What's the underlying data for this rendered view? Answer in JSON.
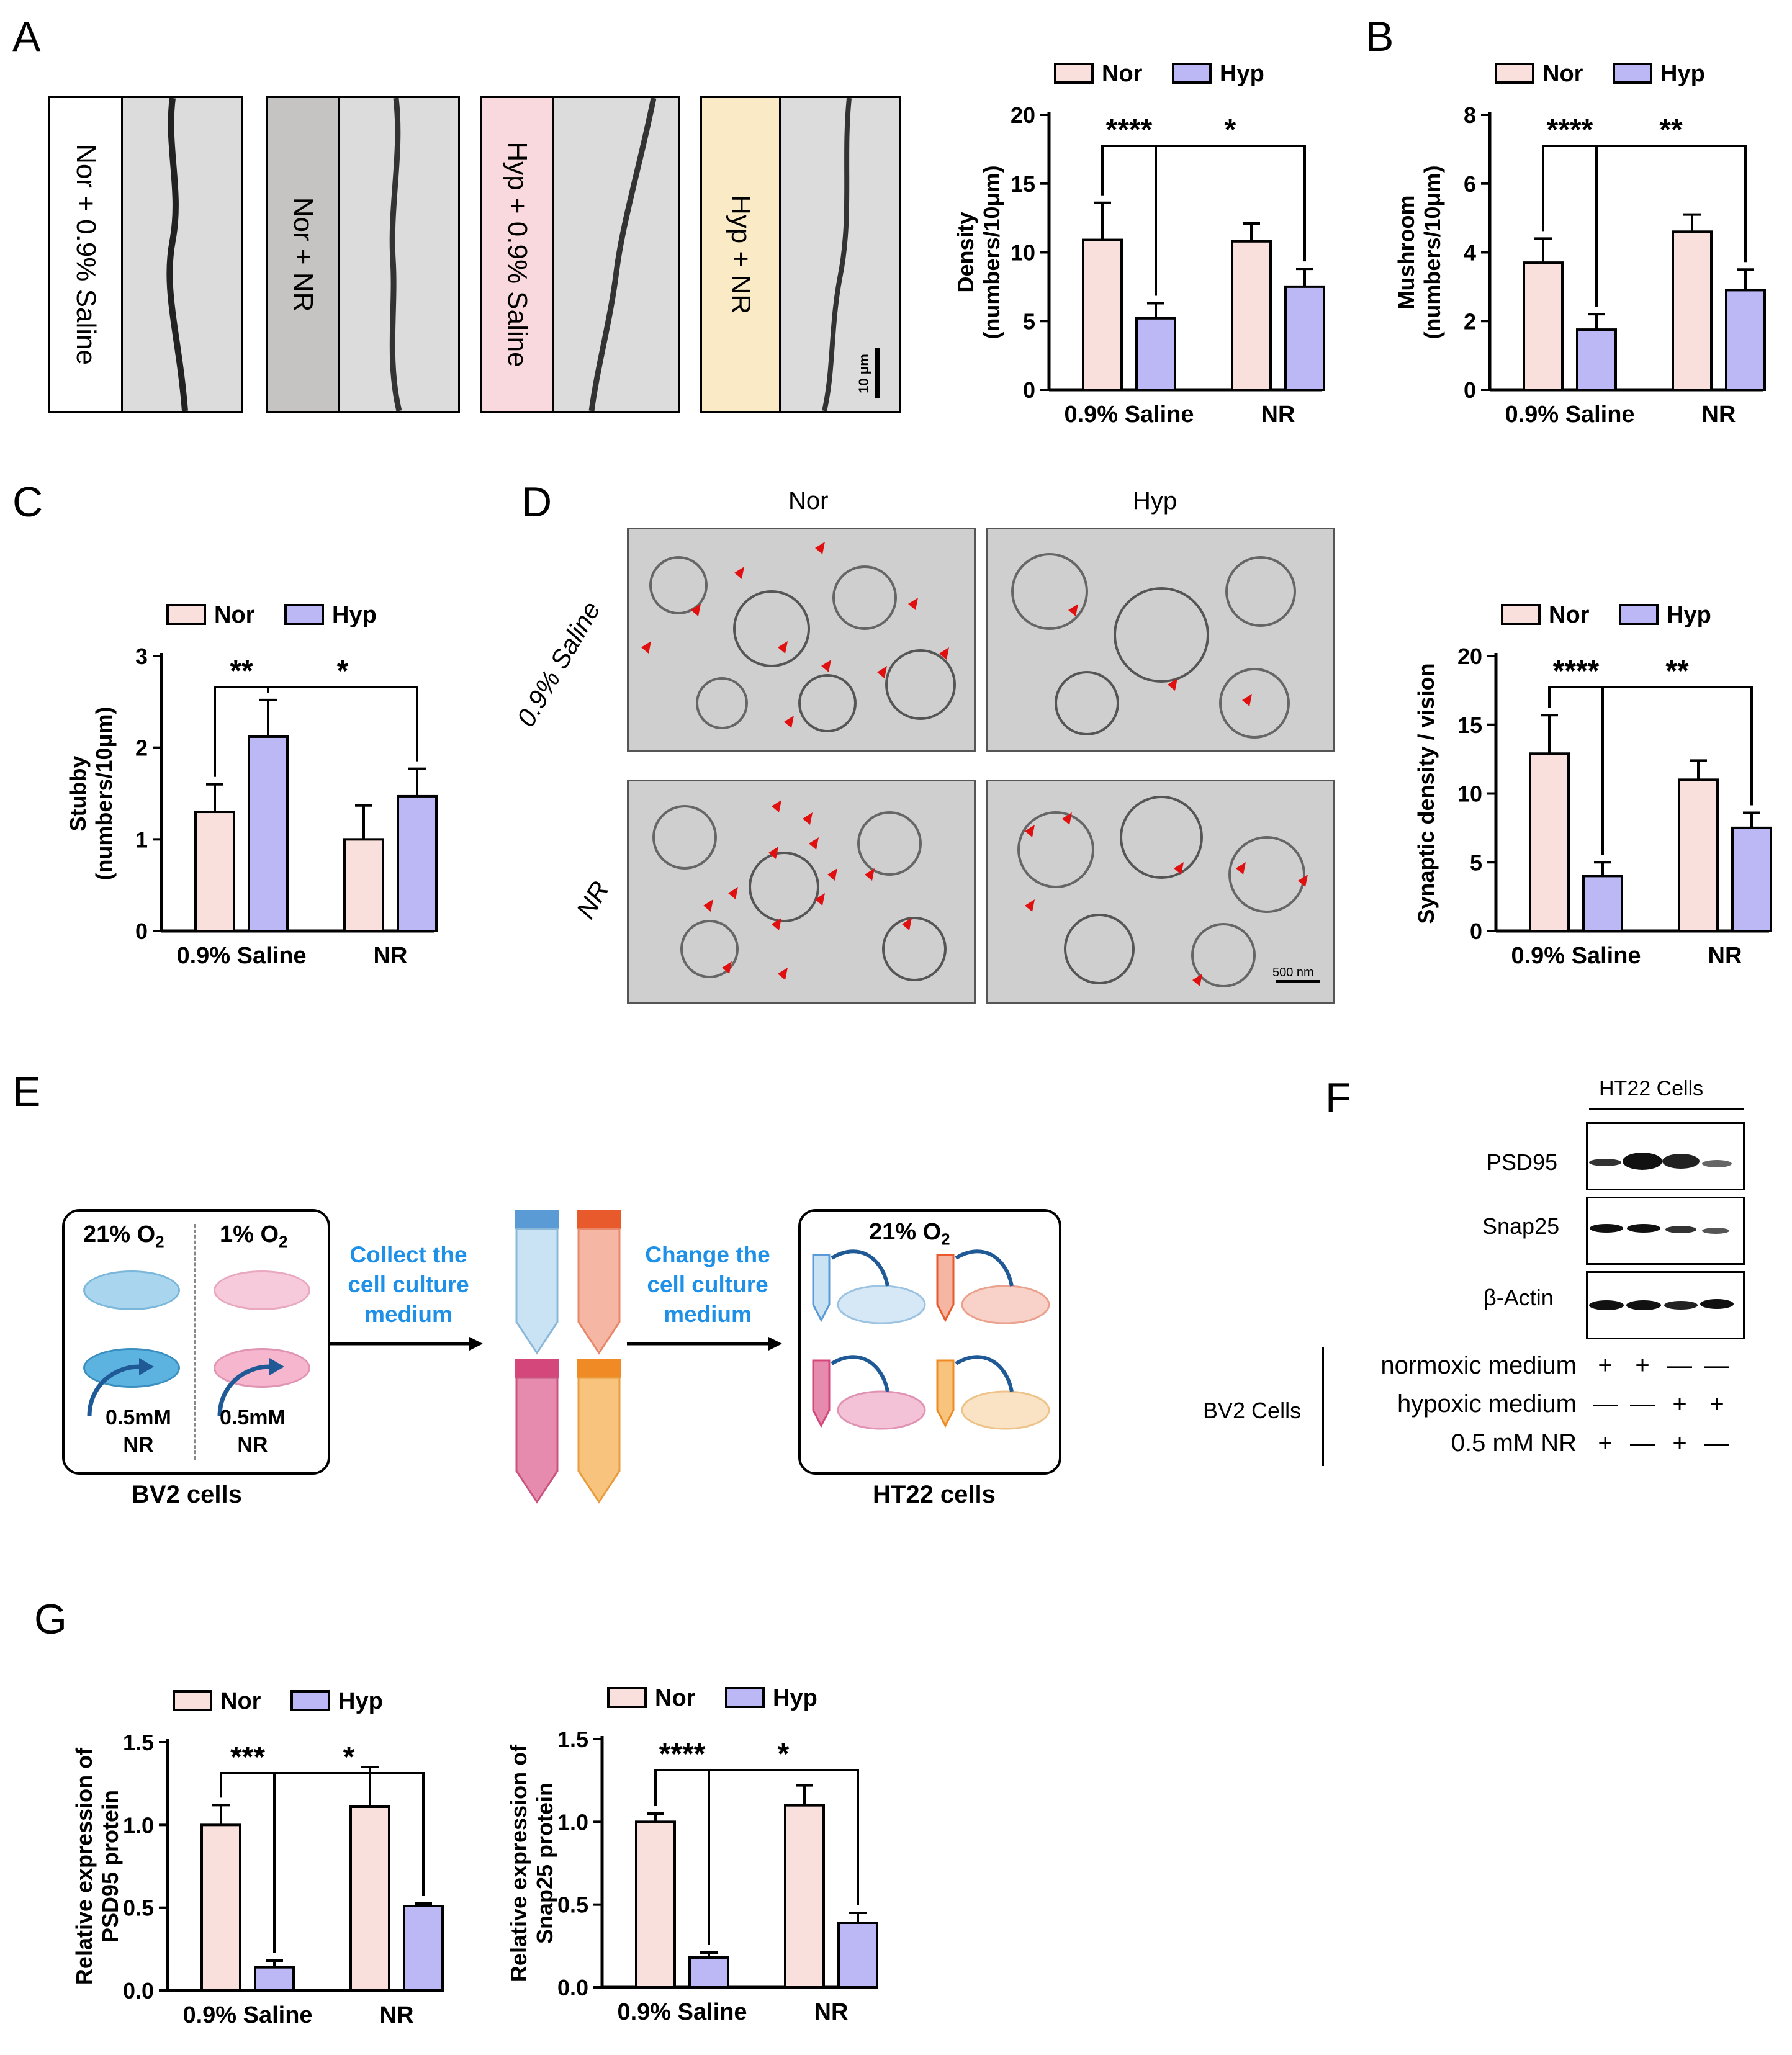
{
  "panel_labels": [
    "A",
    "B",
    "C",
    "D",
    "E",
    "F",
    "G"
  ],
  "colors": {
    "nor": "#FAE0DC",
    "hyp": "#BBB8F5",
    "nor_label_bg": "#ffffff",
    "nr_label_bg": "#C6C3C3",
    "hyp_saline_bg": "#F9D9DD",
    "hyp_nr_bg": "#FAEBC6",
    "arrow": "#E01010",
    "flow_text": "#1E90E8"
  },
  "panelA": {
    "micro_labels": [
      "Nor + 0.9% Saline",
      "Nor + NR",
      "Hyp + 0.9% Saline",
      "Hyp + NR"
    ],
    "scale_bar": "10 μm"
  },
  "panelD": {
    "col_titles": [
      "Nor",
      "Hyp"
    ],
    "row_titles": [
      "0.9% Saline",
      "NR"
    ],
    "scale_bar": "500 nm"
  },
  "panelE": {
    "left_box": {
      "o2_left": "21% O",
      "o2_right": "1% O",
      "sub": "2",
      "nr_left": "0.5mM",
      "nr_right": "0.5mM",
      "nr": "NR",
      "caption": "BV2 cells"
    },
    "step1": [
      "Collect the",
      "cell culture",
      "medium"
    ],
    "step2": [
      "Change the",
      "cell culture",
      "medium"
    ],
    "right_box": {
      "o2": "21% O",
      "sub": "2",
      "caption": "HT22 cells"
    }
  },
  "panelF": {
    "header": "HT22 Cells",
    "rows": [
      "PSD95",
      "Snap25",
      "β-Actin"
    ],
    "group_label": "BV2 Cells",
    "conditions": [
      {
        "name": "normoxic medium",
        "signs": [
          "+",
          "+",
          "—",
          "—"
        ]
      },
      {
        "name": "hypoxic medium",
        "signs": [
          "—",
          "—",
          "+",
          "+"
        ]
      },
      {
        "name": "0.5 mM NR",
        "signs": [
          "+",
          "—",
          "+",
          "—"
        ]
      }
    ]
  },
  "chart_data": [
    {
      "id": "A_density",
      "type": "bar",
      "title": "",
      "categories": [
        "0.9% Saline",
        "NR"
      ],
      "series": [
        {
          "name": "Nor",
          "values": [
            10.9,
            10.8
          ],
          "errors": [
            2.7,
            1.3
          ]
        },
        {
          "name": "Hyp",
          "values": [
            5.2,
            7.5
          ],
          "errors": [
            1.1,
            1.3
          ]
        }
      ],
      "ylabel": [
        "Density",
        "(numbers/10μm)"
      ],
      "ylim": [
        0,
        20
      ],
      "yticks": [
        "0",
        "5",
        "10",
        "15",
        "20"
      ],
      "ytick_values": [
        0,
        5,
        10,
        15,
        20
      ],
      "brackets": [
        {
          "from": [
            0,
            0
          ],
          "to": [
            0,
            1
          ],
          "label": "****"
        },
        {
          "from": [
            0,
            1
          ],
          "to": [
            1,
            1
          ],
          "label": "*"
        }
      ],
      "legend": [
        "Nor",
        "Hyp"
      ],
      "legend_position": "top"
    },
    {
      "id": "B_mushroom",
      "type": "bar",
      "title": "",
      "categories": [
        "0.9% Saline",
        "NR"
      ],
      "series": [
        {
          "name": "Nor",
          "values": [
            3.7,
            4.6
          ],
          "errors": [
            0.7,
            0.5
          ]
        },
        {
          "name": "Hyp",
          "values": [
            1.75,
            2.9
          ],
          "errors": [
            0.45,
            0.6
          ]
        }
      ],
      "ylabel": [
        "Mushroom",
        "(numbers/10μm)"
      ],
      "ylim": [
        0,
        8
      ],
      "yticks": [
        "0",
        "2",
        "4",
        "6",
        "8"
      ],
      "ytick_values": [
        0,
        2,
        4,
        6,
        8
      ],
      "brackets": [
        {
          "from": [
            0,
            0
          ],
          "to": [
            0,
            1
          ],
          "label": "****"
        },
        {
          "from": [
            0,
            1
          ],
          "to": [
            1,
            1
          ],
          "label": "**"
        }
      ],
      "legend": [
        "Nor",
        "Hyp"
      ],
      "legend_position": "top"
    },
    {
      "id": "C_stubby",
      "type": "bar",
      "title": "",
      "categories": [
        "0.9% Saline",
        "NR"
      ],
      "series": [
        {
          "name": "Nor",
          "values": [
            1.3,
            1.0
          ],
          "errors": [
            0.3,
            0.37
          ]
        },
        {
          "name": "Hyp",
          "values": [
            2.12,
            1.47
          ],
          "errors": [
            0.4,
            0.3
          ]
        }
      ],
      "ylabel": [
        "Stubby",
        "(numbers/10μm)"
      ],
      "ylim": [
        0,
        3
      ],
      "yticks": [
        "0",
        "1",
        "2",
        "3"
      ],
      "ytick_values": [
        0,
        1,
        2,
        3
      ],
      "brackets": [
        {
          "from": [
            0,
            0
          ],
          "to": [
            0,
            1
          ],
          "label": "**"
        },
        {
          "from": [
            0,
            1
          ],
          "to": [
            1,
            1
          ],
          "label": "*"
        }
      ],
      "legend": [
        "Nor",
        "Hyp"
      ],
      "legend_position": "top"
    },
    {
      "id": "D_synaptic",
      "type": "bar",
      "title": "",
      "categories": [
        "0.9% Saline",
        "NR"
      ],
      "series": [
        {
          "name": "Nor",
          "values": [
            12.9,
            11.0
          ],
          "errors": [
            2.8,
            1.4
          ]
        },
        {
          "name": "Hyp",
          "values": [
            4.0,
            7.5
          ],
          "errors": [
            1.0,
            1.1
          ]
        }
      ],
      "ylabel": [
        "Synaptic density / vision"
      ],
      "ylim": [
        0,
        20
      ],
      "yticks": [
        "0",
        "5",
        "10",
        "15",
        "20"
      ],
      "ytick_values": [
        0,
        5,
        10,
        15,
        20
      ],
      "brackets": [
        {
          "from": [
            0,
            0
          ],
          "to": [
            0,
            1
          ],
          "label": "****"
        },
        {
          "from": [
            0,
            1
          ],
          "to": [
            1,
            1
          ],
          "label": "**"
        }
      ],
      "legend": [
        "Nor",
        "Hyp"
      ],
      "legend_position": "top"
    },
    {
      "id": "G_psd95",
      "type": "bar",
      "title": "",
      "categories": [
        "0.9% Saline",
        "NR"
      ],
      "series": [
        {
          "name": "Nor",
          "values": [
            1.0,
            1.11
          ],
          "errors": [
            0.12,
            0.24
          ]
        },
        {
          "name": "Hyp",
          "values": [
            0.14,
            0.51
          ],
          "errors": [
            0.04,
            0.015
          ]
        }
      ],
      "ylabel": [
        "Relative  expression of",
        "PSD95 protein"
      ],
      "ylim": [
        0,
        1.5
      ],
      "yticks": [
        "0.0",
        "0.5",
        "1.0",
        "1.5"
      ],
      "ytick_values": [
        0,
        0.5,
        1.0,
        1.5
      ],
      "brackets": [
        {
          "from": [
            0,
            0
          ],
          "to": [
            0,
            1
          ],
          "label": "***"
        },
        {
          "from": [
            0,
            1
          ],
          "to": [
            1,
            1
          ],
          "label": "*"
        }
      ],
      "legend": [
        "Nor",
        "Hyp"
      ],
      "legend_position": "top"
    },
    {
      "id": "G_snap25",
      "type": "bar",
      "title": "",
      "categories": [
        "0.9% Saline",
        "NR"
      ],
      "series": [
        {
          "name": "Nor",
          "values": [
            1.0,
            1.1
          ],
          "errors": [
            0.05,
            0.12
          ]
        },
        {
          "name": "Hyp",
          "values": [
            0.18,
            0.39
          ],
          "errors": [
            0.03,
            0.06
          ]
        }
      ],
      "ylabel": [
        "Relative  expression of",
        "Snap25 protein"
      ],
      "ylim": [
        0,
        1.5
      ],
      "yticks": [
        "0.0",
        "0.5",
        "1.0",
        "1.5"
      ],
      "ytick_values": [
        0,
        0.5,
        1.0,
        1.5
      ],
      "brackets": [
        {
          "from": [
            0,
            0
          ],
          "to": [
            0,
            1
          ],
          "label": "****"
        },
        {
          "from": [
            0,
            1
          ],
          "to": [
            1,
            1
          ],
          "label": "*"
        }
      ],
      "legend": [
        "Nor",
        "Hyp"
      ],
      "legend_position": "top"
    }
  ]
}
